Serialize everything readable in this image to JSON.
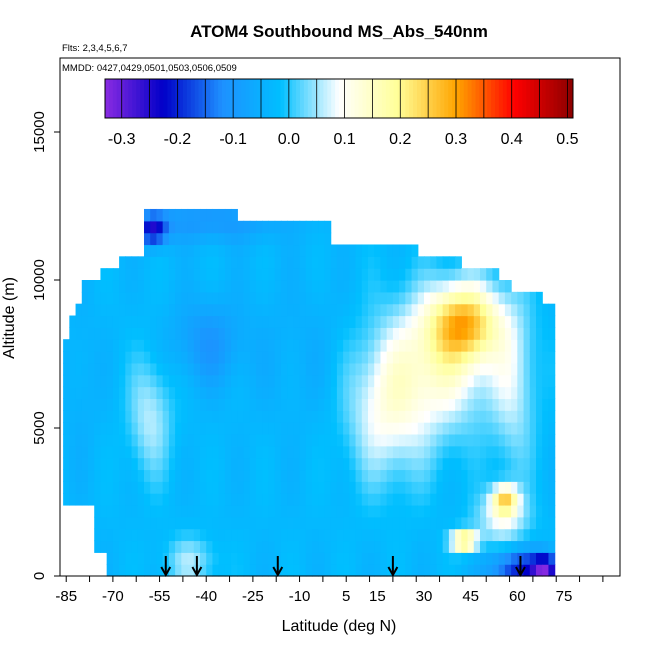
{
  "chart_data": {
    "type": "heatmap",
    "title": "ATOM4 Southbound MS_Abs_540nm",
    "flights_note": "Flts: 2,3,4,5,6,7",
    "dates_note": "MMDD: 0427,0429,0501,0503,0506,0509",
    "xlabel": "Latitude (deg N)",
    "ylabel": "Altitude (m)",
    "xlim": [
      -87,
      93
    ],
    "ylim": [
      0,
      17500
    ],
    "x_tick_values": [
      -85,
      -70,
      -55,
      -40,
      -25,
      -10,
      5,
      15,
      30,
      45,
      60,
      75
    ],
    "x_tick_labels": [
      "-85",
      "-70",
      "-55",
      "-40",
      "-25",
      "-10",
      "5",
      "15",
      "30",
      "45",
      "60",
      "75"
    ],
    "y_tick_values": [
      0,
      5000,
      10000,
      15000
    ],
    "y_tick_labels": [
      "0",
      "5000",
      "10000",
      "15000"
    ],
    "colorbar": {
      "range": [
        -0.33,
        0.51
      ],
      "tick_values": [
        -0.3,
        -0.2,
        -0.1,
        0.0,
        0.1,
        0.2,
        0.3,
        0.4,
        0.5
      ],
      "tick_labels": [
        "-0.3",
        "-0.2",
        "-0.1",
        "0.0",
        "0.1",
        "0.2",
        "0.3",
        "0.4",
        "0.5"
      ],
      "colors": [
        "#8a2be2",
        "#0000c8",
        "#1e90ff",
        "#00bfff",
        "#ffffff",
        "#ffff99",
        "#ffa500",
        "#ff0000",
        "#8b0000"
      ]
    },
    "profile_latitudes": [
      -53,
      -43,
      -17,
      20,
      61
    ],
    "background_value": -0.03,
    "extent": {
      "x_start": -85,
      "x_end": 71,
      "y_top_base": 11000,
      "y_top_north": 9800
    },
    "anomalies": [
      {
        "x": 43,
        "y": 8600,
        "sx": 8,
        "sy": 900,
        "v": 0.22
      },
      {
        "x": 38,
        "y": 7200,
        "sx": 12,
        "sy": 1600,
        "v": 0.1
      },
      {
        "x": 22,
        "y": 6200,
        "sx": 10,
        "sy": 2000,
        "v": 0.06
      },
      {
        "x": 59,
        "y": 6400,
        "sx": 5,
        "sy": 2200,
        "v": 0.05
      },
      {
        "x": 56,
        "y": 2600,
        "sx": 3,
        "sy": 350,
        "v": 0.2
      },
      {
        "x": 55,
        "y": 1900,
        "sx": 6,
        "sy": 600,
        "v": 0.08
      },
      {
        "x": 43,
        "y": 1200,
        "sx": 3,
        "sy": 250,
        "v": 0.25
      },
      {
        "x": 60,
        "y": 250,
        "sx": 6,
        "sy": 450,
        "v": -0.2
      },
      {
        "x": 69,
        "y": 250,
        "sx": 3,
        "sy": 350,
        "v": -0.28
      },
      {
        "x": -57,
        "y": 11700,
        "sx": 3,
        "sy": 350,
        "v": -0.22
      },
      {
        "x": -40,
        "y": 12000,
        "sx": 18,
        "sy": 500,
        "v": -0.1
      },
      {
        "x": -40,
        "y": 7900,
        "sx": 8,
        "sy": 1000,
        "v": -0.1
      },
      {
        "x": -58,
        "y": 5400,
        "sx": 5,
        "sy": 1400,
        "v": 0.06
      },
      {
        "x": -45,
        "y": 500,
        "sx": 6,
        "sy": 600,
        "v": 0.05
      },
      {
        "x": 15,
        "y": 5500,
        "sx": 8,
        "sy": 1600,
        "v": 0.03
      },
      {
        "x": -10,
        "y": 7600,
        "sx": 14,
        "sy": 1800,
        "v": -0.05
      },
      {
        "x": -80,
        "y": 6500,
        "sx": 4,
        "sy": 2000,
        "v": -0.05
      }
    ]
  }
}
